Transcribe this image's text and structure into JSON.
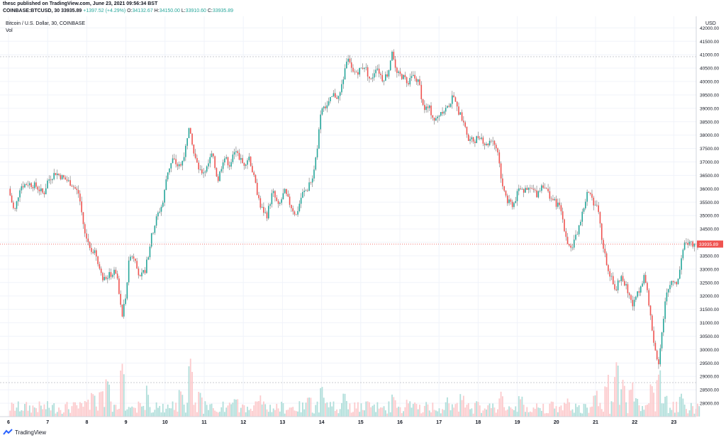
{
  "header": {
    "published": "thesc published on TradingView.com, June 23, 2021 09:56:34 BST",
    "symbol": "COINBASE:BTCUSD, 30",
    "last": "33935.89",
    "change": "+1397.52 (+4.29%)",
    "o_label": "O:",
    "o_value": "34132.67",
    "h_label": "H:",
    "h_value": "34150.00",
    "l_label": "L:",
    "l_value": "33910.60",
    "c_label": "C:",
    "c_value": "33935.89"
  },
  "footer": {
    "brand": "TradingView"
  },
  "colors": {
    "up": "#26a69a",
    "down": "#ef5350",
    "grid": "#f0f3fa",
    "price_line": "#ef5350"
  },
  "chart_data": {
    "type": "candlestick",
    "title": "Bitcoin / U.S. Dollar, 30, COINBASE",
    "volume_label": "Vol",
    "y_unit": "USD",
    "ylim": [
      27500,
      42300
    ],
    "y_ticks": [
      "42000.00",
      "41500.00",
      "41000.00",
      "40500.00",
      "40000.00",
      "39500.00",
      "39000.00",
      "38500.00",
      "38000.00",
      "37500.00",
      "37000.00",
      "36500.00",
      "36000.00",
      "35500.00",
      "35000.00",
      "34500.00",
      "34000.00",
      "33500.00",
      "33000.00",
      "32500.00",
      "32000.00",
      "31500.00",
      "31000.00",
      "30500.00",
      "30000.00",
      "29500.00",
      "29000.00",
      "28500.00",
      "28000.00"
    ],
    "x_ticks": [
      "6",
      "7",
      "8",
      "9",
      "10",
      "11",
      "12",
      "13",
      "14",
      "15",
      "16",
      "17",
      "18",
      "19",
      "20",
      "21",
      "22",
      "23"
    ],
    "current_price": 33935.89,
    "current_price_label": "33935.89",
    "price_path": [
      [
        6.0,
        36000
      ],
      [
        6.15,
        35100
      ],
      [
        6.3,
        36100
      ],
      [
        6.5,
        36200
      ],
      [
        6.7,
        36100
      ],
      [
        6.9,
        35800
      ],
      [
        7.0,
        36300
      ],
      [
        7.2,
        36600
      ],
      [
        7.4,
        36400
      ],
      [
        7.6,
        36200
      ],
      [
        7.8,
        35800
      ],
      [
        7.95,
        34300
      ],
      [
        8.1,
        33800
      ],
      [
        8.25,
        33500
      ],
      [
        8.4,
        32600
      ],
      [
        8.6,
        32800
      ],
      [
        8.75,
        32900
      ],
      [
        8.9,
        31200
      ],
      [
        9.0,
        32100
      ],
      [
        9.1,
        33600
      ],
      [
        9.25,
        33400
      ],
      [
        9.35,
        32600
      ],
      [
        9.5,
        33000
      ],
      [
        9.65,
        34200
      ],
      [
        9.8,
        35000
      ],
      [
        9.95,
        35500
      ],
      [
        10.05,
        36600
      ],
      [
        10.2,
        37100
      ],
      [
        10.35,
        36800
      ],
      [
        10.5,
        37300
      ],
      [
        10.6,
        38300
      ],
      [
        10.75,
        37200
      ],
      [
        10.9,
        36600
      ],
      [
        11.05,
        36700
      ],
      [
        11.2,
        37300
      ],
      [
        11.35,
        36300
      ],
      [
        11.5,
        37200
      ],
      [
        11.65,
        36900
      ],
      [
        11.8,
        37400
      ],
      [
        12.0,
        36900
      ],
      [
        12.15,
        37200
      ],
      [
        12.3,
        36200
      ],
      [
        12.45,
        35300
      ],
      [
        12.6,
        35000
      ],
      [
        12.75,
        35900
      ],
      [
        12.9,
        35300
      ],
      [
        13.05,
        35900
      ],
      [
        13.2,
        35400
      ],
      [
        13.35,
        35000
      ],
      [
        13.5,
        35800
      ],
      [
        13.65,
        36000
      ],
      [
        13.8,
        36600
      ],
      [
        13.9,
        37700
      ],
      [
        14.0,
        39000
      ],
      [
        14.15,
        39100
      ],
      [
        14.3,
        39500
      ],
      [
        14.45,
        39400
      ],
      [
        14.55,
        40100
      ],
      [
        14.65,
        40900
      ],
      [
        14.8,
        40300
      ],
      [
        14.95,
        40400
      ],
      [
        15.1,
        40600
      ],
      [
        15.25,
        40000
      ],
      [
        15.4,
        40600
      ],
      [
        15.55,
        40100
      ],
      [
        15.7,
        40300
      ],
      [
        15.8,
        41200
      ],
      [
        15.9,
        40300
      ],
      [
        16.05,
        40200
      ],
      [
        16.2,
        40000
      ],
      [
        16.35,
        40200
      ],
      [
        16.5,
        39900
      ],
      [
        16.6,
        39000
      ],
      [
        16.75,
        39000
      ],
      [
        16.9,
        38500
      ],
      [
        17.05,
        38900
      ],
      [
        17.2,
        39000
      ],
      [
        17.35,
        39400
      ],
      [
        17.5,
        38900
      ],
      [
        17.65,
        38500
      ],
      [
        17.75,
        37800
      ],
      [
        17.9,
        37800
      ],
      [
        18.05,
        38000
      ],
      [
        18.2,
        37600
      ],
      [
        18.35,
        37900
      ],
      [
        18.5,
        37400
      ],
      [
        18.6,
        36300
      ],
      [
        18.75,
        35500
      ],
      [
        18.9,
        35400
      ],
      [
        19.05,
        36000
      ],
      [
        19.2,
        35900
      ],
      [
        19.35,
        36000
      ],
      [
        19.5,
        35800
      ],
      [
        19.65,
        36200
      ],
      [
        19.8,
        35800
      ],
      [
        19.95,
        35500
      ],
      [
        20.1,
        35300
      ],
      [
        20.25,
        34200
      ],
      [
        20.35,
        33700
      ],
      [
        20.5,
        34200
      ],
      [
        20.65,
        35000
      ],
      [
        20.8,
        35900
      ],
      [
        20.95,
        35500
      ],
      [
        21.05,
        35300
      ],
      [
        21.2,
        33700
      ],
      [
        21.35,
        32900
      ],
      [
        21.5,
        32200
      ],
      [
        21.65,
        32800
      ],
      [
        21.8,
        32300
      ],
      [
        21.95,
        31600
      ],
      [
        22.1,
        32200
      ],
      [
        22.25,
        32800
      ],
      [
        22.35,
        31800
      ],
      [
        22.5,
        30200
      ],
      [
        22.6,
        29400
      ],
      [
        22.7,
        30700
      ],
      [
        22.8,
        32000
      ],
      [
        22.95,
        32600
      ],
      [
        23.1,
        32500
      ],
      [
        23.2,
        33600
      ],
      [
        23.3,
        34100
      ],
      [
        23.45,
        33900
      ],
      [
        23.55,
        34000
      ],
      [
        23.65,
        33935.89
      ]
    ],
    "volume_spikes": [
      [
        8.0,
        0.25
      ],
      [
        8.15,
        0.4
      ],
      [
        8.35,
        0.5
      ],
      [
        8.55,
        0.6
      ],
      [
        8.9,
        0.7
      ],
      [
        9.55,
        0.45
      ],
      [
        10.4,
        0.4
      ],
      [
        10.65,
        0.9
      ],
      [
        10.9,
        0.35
      ],
      [
        11.8,
        0.35
      ],
      [
        12.4,
        0.3
      ],
      [
        13.7,
        0.3
      ],
      [
        14.0,
        0.4
      ],
      [
        14.6,
        0.3
      ],
      [
        15.85,
        0.3
      ],
      [
        16.2,
        0.25
      ],
      [
        17.2,
        0.25
      ],
      [
        17.6,
        0.3
      ],
      [
        18.6,
        0.35
      ],
      [
        19.1,
        0.35
      ],
      [
        20.3,
        0.25
      ],
      [
        21.0,
        0.35
      ],
      [
        21.3,
        0.55
      ],
      [
        21.55,
        0.7
      ],
      [
        21.7,
        0.55
      ],
      [
        21.9,
        0.45
      ],
      [
        22.05,
        0.35
      ],
      [
        22.45,
        0.5
      ],
      [
        22.6,
        0.75
      ],
      [
        22.8,
        0.35
      ],
      [
        23.2,
        0.3
      ]
    ]
  }
}
